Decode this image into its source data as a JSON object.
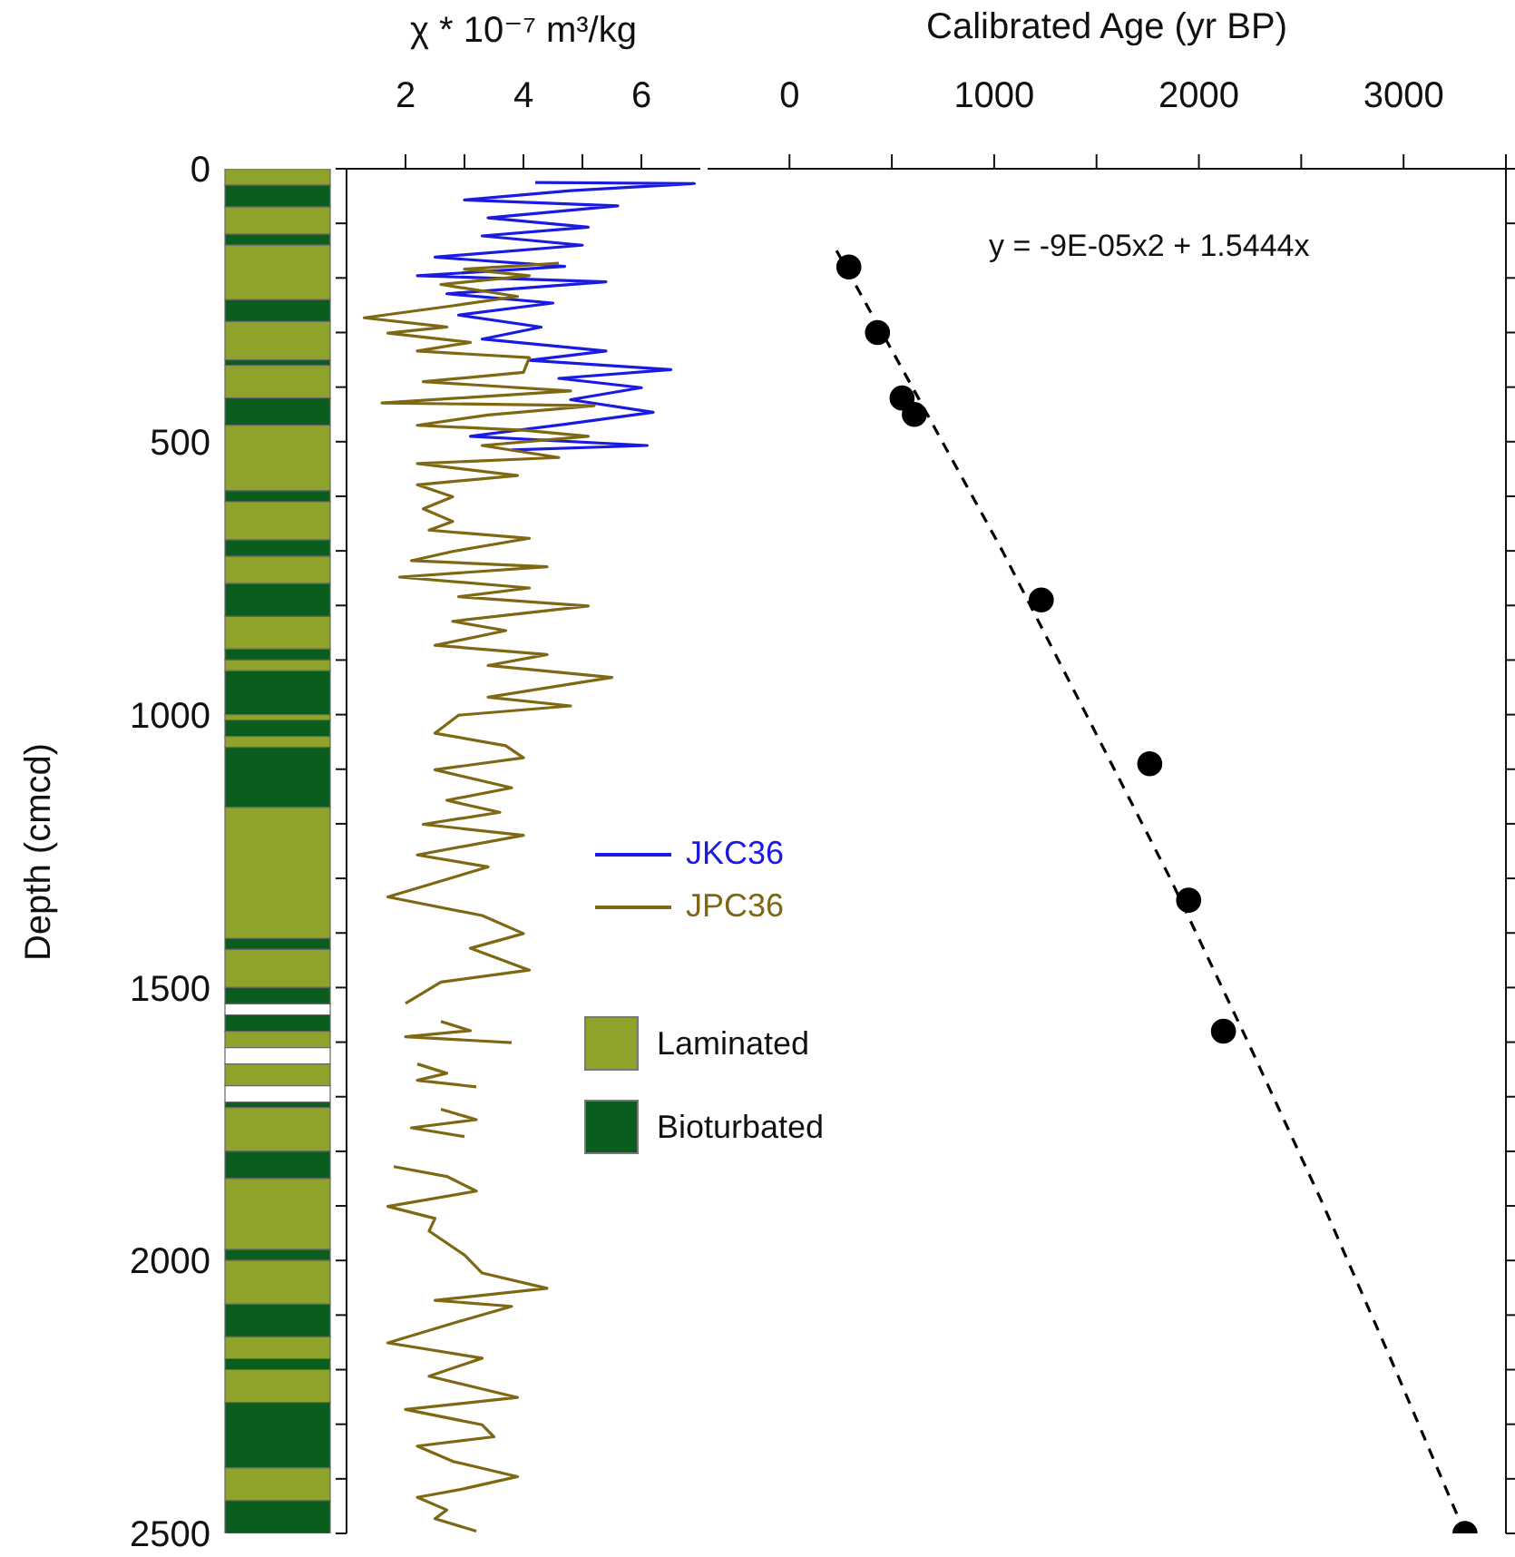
{
  "chart_data": [
    {
      "type": "bar",
      "stacked": true,
      "ylabel": "Depth (cmcd)",
      "categories": [
        null
      ],
      "ylim": [
        2500,
        0
      ],
      "yticks": [
        0,
        500,
        1000,
        1500,
        2000,
        2500
      ],
      "tick_labels": "y",
      "legend": "right",
      "series": [
        {
          "name": "Laminated",
          "color": "#8fa32a",
          "values": [
            30
          ]
        },
        {
          "name": "Bioturbated",
          "color": "#0b5d1e",
          "values": [
            40
          ]
        },
        {
          "color": "#8fa32a",
          "values": [
            50
          ]
        },
        {
          "color": "#0b5d1e",
          "values": [
            20
          ]
        },
        {
          "color": "#8fa32a",
          "values": [
            100
          ]
        },
        {
          "color": "#0b5d1e",
          "values": [
            40
          ]
        },
        {
          "color": "#8fa32a",
          "values": [
            70
          ]
        },
        {
          "color": "#0b5d1e",
          "values": [
            10
          ]
        },
        {
          "color": "#8fa32a",
          "values": [
            60
          ]
        },
        {
          "color": "#0b5d1e",
          "values": [
            50
          ]
        },
        {
          "color": "#8fa32a",
          "values": [
            120
          ]
        },
        {
          "color": "#0b5d1e",
          "values": [
            20
          ]
        },
        {
          "color": "#8fa32a",
          "values": [
            70
          ]
        },
        {
          "color": "#0b5d1e",
          "values": [
            30
          ]
        },
        {
          "color": "#8fa32a",
          "values": [
            50
          ]
        },
        {
          "color": "#0b5d1e",
          "values": [
            60
          ]
        },
        {
          "color": "#8fa32a",
          "values": [
            60
          ]
        },
        {
          "color": "#0b5d1e",
          "values": [
            20
          ]
        },
        {
          "color": "#8fa32a",
          "values": [
            20
          ]
        },
        {
          "color": "#0b5d1e",
          "values": [
            80
          ]
        },
        {
          "color": "#8fa32a",
          "values": [
            10
          ]
        },
        {
          "color": "#0b5d1e",
          "values": [
            30
          ]
        },
        {
          "color": "#8fa32a",
          "values": [
            20
          ]
        },
        {
          "color": "#0b5d1e",
          "values": [
            110
          ]
        },
        {
          "color": "#8fa32a",
          "values": [
            240
          ]
        },
        {
          "color": "#0b5d1e",
          "values": [
            20
          ]
        },
        {
          "color": "#8fa32a",
          "values": [
            70
          ]
        },
        {
          "color": "#0b5d1e",
          "values": [
            30
          ]
        },
        {
          "color": "#ffffff",
          "values": [
            20
          ]
        },
        {
          "color": "#0b5d1e",
          "values": [
            30
          ]
        },
        {
          "color": "#8fa32a",
          "values": [
            30
          ]
        },
        {
          "color": "#ffffff",
          "values": [
            30
          ]
        },
        {
          "color": "#8fa32a",
          "values": [
            40
          ]
        },
        {
          "color": "#ffffff",
          "values": [
            30
          ]
        },
        {
          "color": "#0b5d1e",
          "values": [
            10
          ]
        },
        {
          "color": "#8fa32a",
          "values": [
            80
          ]
        },
        {
          "color": "#0b5d1e",
          "values": [
            50
          ]
        },
        {
          "color": "#8fa32a",
          "values": [
            130
          ]
        },
        {
          "color": "#0b5d1e",
          "values": [
            20
          ]
        },
        {
          "color": "#8fa32a",
          "values": [
            80
          ]
        },
        {
          "color": "#0b5d1e",
          "values": [
            60
          ]
        },
        {
          "color": "#8fa32a",
          "values": [
            40
          ]
        },
        {
          "color": "#0b5d1e",
          "values": [
            20
          ]
        },
        {
          "color": "#8fa32a",
          "values": [
            60
          ]
        },
        {
          "color": "#0b5d1e",
          "values": [
            120
          ]
        },
        {
          "color": "#8fa32a",
          "values": [
            60
          ]
        },
        {
          "color": "#0b5d1e",
          "values": [
            60
          ]
        }
      ]
    },
    {
      "type": "line",
      "xlabel": "χ * 10⁻⁷ m³/kg",
      "xlim": [
        1,
        7
      ],
      "xticks": [
        2,
        {
          "value": 3,
          "label": null
        },
        4,
        {
          "value": 5,
          "label": null
        },
        6
      ],
      "ylim": [
        2500,
        0
      ],
      "yticks": [
        0,
        100,
        200,
        300,
        400,
        500,
        600,
        700,
        800,
        900,
        1000,
        1100,
        1200,
        1300,
        1400,
        1500,
        1600,
        1700,
        1800,
        1900,
        2000,
        2100,
        2200,
        2300,
        2400,
        2500
      ],
      "tick_labels": "x",
      "legend": "right",
      "marker": "none",
      "line_style": "solid",
      "series": [
        {
          "name": "JKC36",
          "color": "#1a1ae0",
          "x": [
            4.2,
            6.9,
            4.8,
            3.0,
            5.6,
            3.4,
            5.1,
            3.3,
            5.0,
            2.5,
            4.7,
            2.2,
            5.4,
            2.7,
            4.5,
            2.9,
            4.3,
            3.3,
            5.4,
            4.1,
            6.5,
            4.6,
            6.0,
            4.8,
            6.2,
            4.7,
            3.1,
            6.1,
            3.8
          ],
          "values": [
            25,
            27,
            40,
            57,
            68,
            90,
            107,
            123,
            140,
            162,
            179,
            196,
            207,
            229,
            246,
            268,
            290,
            312,
            334,
            351,
            368,
            384,
            401,
            423,
            446,
            468,
            490,
            507,
            515
          ]
        },
        {
          "name": "JPC36",
          "color": "#7f6814",
          "x": [
            4.6,
            3.0,
            4.1,
            2.6,
            3.9,
            2.8,
            1.3,
            2.7,
            1.7,
            3.1,
            2.2,
            4.1,
            4.0,
            2.3,
            4.8,
            1.6,
            5.2,
            3.4,
            2.2,
            4.0,
            5.1,
            3.3,
            4.6,
            2.2,
            3.9,
            2.2,
            2.8,
            2.3,
            2.8,
            2.4,
            4.1,
            2.8,
            2.1,
            4.4,
            1.9,
            4.1,
            2.9,
            5.1,
            2.8,
            3.7,
            2.5,
            4.4,
            3.4,
            5.5,
            3.4,
            4.8,
            2.9,
            2.5,
            3.7,
            4.0,
            2.5,
            3.8,
            2.7,
            3.6,
            2.3,
            4.0,
            2.2,
            3.4,
            1.7,
            3.3,
            4.0,
            3.1,
            4.1,
            2.6,
            2.0,
            null,
            2.6,
            3.1,
            2.0,
            3.8,
            null,
            2.2,
            2.7,
            2.2,
            3.2,
            null,
            2.6,
            3.2,
            2.1,
            3.0,
            null,
            1.8,
            2.7,
            3.2,
            1.7,
            2.5,
            2.4,
            3.0,
            3.3,
            4.4,
            2.5,
            3.8,
            2.9,
            1.7,
            3.3,
            2.4,
            3.9,
            2.0,
            3.3,
            3.5,
            2.2,
            2.8,
            3.9,
            3.0,
            2.2,
            2.7,
            2.5,
            3.2
          ],
          "values": [
            173,
            184,
            196,
            212,
            234,
            251,
            273,
            290,
            301,
            318,
            334,
            346,
            373,
            390,
            407,
            429,
            434,
            451,
            470,
            479,
            490,
            507,
            529,
            540,
            562,
            579,
            601,
            623,
            646,
            662,
            677,
            701,
            718,
            729,
            748,
            768,
            784,
            801,
            829,
            846,
            873,
            890,
            910,
            932,
            968,
            984,
            1001,
            1034,
            1057,
            1079,
            1101,
            1134,
            1157,
            1179,
            1201,
            1221,
            1257,
            1279,
            1334,
            1368,
            1401,
            1428,
            1468,
            1490,
            1529,
            null,
            1562,
            1579,
            1590,
            1601,
            null,
            1640,
            1657,
            1670,
            1682,
            null,
            1723,
            1742,
            1757,
            1773,
            null,
            1828,
            1846,
            1873,
            1901,
            1923,
            1946,
            1990,
            2023,
            2051,
            2073,
            2084,
            2112,
            2151,
            2179,
            2212,
            2251,
            2273,
            2301,
            2323,
            2340,
            2368,
            2396,
            2418,
            2434,
            2457,
            2473,
            2496
          ]
        }
      ]
    },
    {
      "type": "scatter",
      "xlabel": "Calibrated Age (yr BP)",
      "xlim": [
        -400,
        3500
      ],
      "xticks": [
        0,
        {
          "value": 500,
          "label": null
        },
        1000,
        {
          "value": 1500,
          "label": null
        },
        2000,
        {
          "value": 2500,
          "label": null
        },
        3000,
        {
          "value": 3500,
          "label": null
        }
      ],
      "ylim": [
        2500,
        0
      ],
      "yticks": [
        0,
        100,
        200,
        300,
        400,
        500,
        600,
        700,
        800,
        900,
        1000,
        1100,
        1200,
        1300,
        1400,
        1500,
        1600,
        1700,
        1800,
        1900,
        2000,
        2100,
        2200,
        2300,
        2400,
        2500
      ],
      "tick_labels": "x",
      "annotations": [
        "y = -9E-05x2 + 1.5444x"
      ],
      "series": [
        {
          "color": "#000000",
          "marker": "circle",
          "x": [
            290,
            430,
            550,
            610,
            1230,
            1760,
            1950,
            2120,
            3300
          ],
          "values": [
            180,
            300,
            420,
            450,
            790,
            1090,
            1340,
            1580,
            2500
          ]
        },
        {
          "type": "line",
          "color": "#000000",
          "marker": "none",
          "line_style": "dashed",
          "x": [
            230,
            600,
            1040,
            1450,
            1860,
            2240,
            2610,
            2960,
            3300
          ],
          "values": [
            150,
            400,
            700,
            1000,
            1300,
            1600,
            1900,
            2200,
            2500
          ]
        }
      ]
    }
  ]
}
